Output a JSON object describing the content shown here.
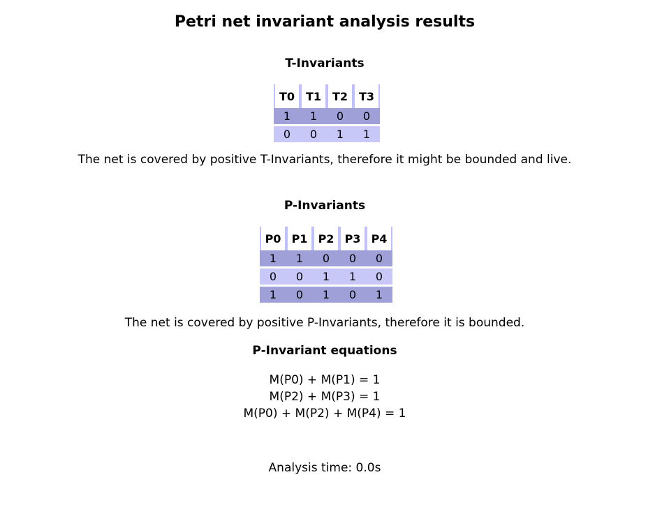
{
  "title": "Petri net invariant analysis results",
  "t_invariants": {
    "heading": "T-Invariants",
    "headers": [
      "T0",
      "T1",
      "T2",
      "T3"
    ],
    "rows": [
      [
        "1",
        "1",
        "0",
        "0"
      ],
      [
        "0",
        "0",
        "1",
        "1"
      ]
    ],
    "conclusion": "The net is covered by positive T-Invariants, therefore it might be bounded and live."
  },
  "p_invariants": {
    "heading": "P-Invariants",
    "headers": [
      "P0",
      "P1",
      "P2",
      "P3",
      "P4"
    ],
    "rows": [
      [
        "1",
        "1",
        "0",
        "0",
        "0"
      ],
      [
        "0",
        "0",
        "1",
        "1",
        "0"
      ],
      [
        "1",
        "0",
        "1",
        "0",
        "1"
      ]
    ],
    "conclusion": "The net is covered by positive P-Invariants, therefore it is bounded."
  },
  "equations": {
    "heading": "P-Invariant equations",
    "lines": [
      "M(P0) + M(P1) = 1",
      "M(P2) + M(P3) = 1",
      "M(P0) + M(P2) + M(P4) = 1"
    ]
  },
  "analysis_time": "Analysis time: 0.0s",
  "colors": {
    "header_border": "#c0c0ff",
    "row_dark": "#a0a0d8",
    "row_light": "#c8c8f8"
  }
}
